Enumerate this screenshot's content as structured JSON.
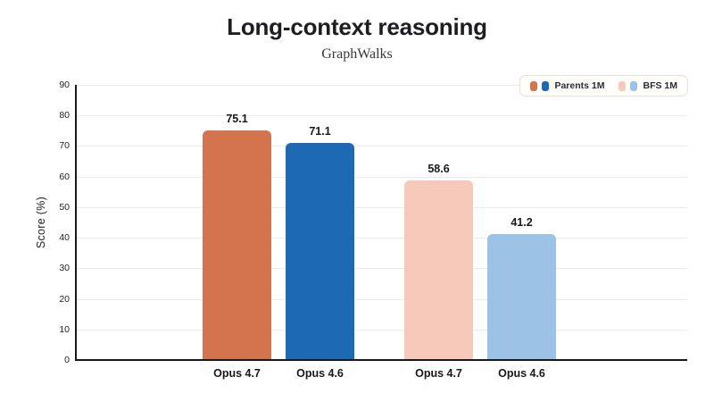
{
  "chart_data": {
    "type": "bar",
    "title": "Long-context reasoning",
    "subtitle": "GraphWalks",
    "ylabel": "Score (%)",
    "ylim": [
      0,
      90
    ],
    "yticks": [
      0,
      10,
      20,
      30,
      40,
      50,
      60,
      70,
      80,
      90
    ],
    "grid": true,
    "legend_position": "top-right",
    "background_color": "#ffffff",
    "axis_color": "#17191c",
    "gridline_color": "#ebebeb",
    "groups": [
      {
        "legend_label": "Parents 1M",
        "bars": [
          {
            "model": "Opus 4.7",
            "value": 75.1,
            "color": "#d3744e"
          },
          {
            "model": "Opus 4.6",
            "value": 71.1,
            "color": "#1d69b3"
          }
        ]
      },
      {
        "legend_label": "BFS 1M",
        "bars": [
          {
            "model": "Opus 4.7",
            "value": 58.6,
            "color": "#f6c9ba"
          },
          {
            "model": "Opus 4.6",
            "value": 41.2,
            "color": "#9cc2e6"
          }
        ]
      }
    ]
  }
}
